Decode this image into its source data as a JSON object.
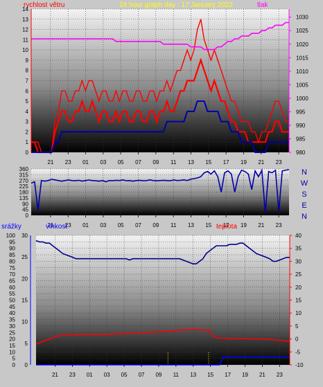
{
  "colors": {
    "page_bg": "#c8c8c8",
    "wind": "#ff0000",
    "gust_band": "#ff0000",
    "wind_dir": "#0000aa",
    "pressure": "#ff00ff",
    "humidity": "#00008b",
    "temperature": "#ff0000",
    "rain": "#0000ff",
    "title_yellow": "#ffff00"
  },
  "chart_data": [
    {
      "id": "wind_pressure",
      "type": "line",
      "title": "24 hour graph day : 17 January 2022",
      "left_label": "rychlost větru",
      "right_label": "tlak",
      "x_ticks": [
        "21",
        "23",
        "01",
        "03",
        "05",
        "07",
        "09",
        "11",
        "13",
        "15",
        "17",
        "19",
        "21",
        "23"
      ],
      "ylim_left": [
        0,
        14
      ],
      "y_ticks_left": [
        0,
        1,
        2,
        3,
        4,
        5,
        6,
        7,
        8,
        9,
        10,
        11,
        12,
        13,
        14
      ],
      "ylim_right": [
        980,
        1033
      ],
      "y_ticks_right": [
        980,
        985,
        990,
        995,
        1000,
        1005,
        1010,
        1015,
        1020,
        1025,
        1030
      ],
      "series": [
        {
          "key": "gust",
          "values": [
            1,
            1,
            1,
            0,
            0,
            0,
            0,
            3,
            4,
            6,
            6,
            5,
            5,
            6,
            6,
            7,
            6,
            7,
            7,
            6,
            5,
            6,
            6,
            5,
            5,
            6,
            5,
            6,
            6,
            5,
            5,
            6,
            6,
            5,
            5,
            6,
            6,
            5,
            6,
            6,
            7,
            6,
            7,
            8,
            8,
            9,
            10,
            9,
            10,
            12,
            13,
            11,
            10,
            9,
            10,
            9,
            8,
            7,
            6,
            5,
            5,
            4,
            3,
            3,
            3,
            2,
            2,
            1,
            2,
            2,
            3,
            4,
            5,
            5,
            4,
            3,
            3
          ]
        },
        {
          "key": "wind",
          "values": [
            1,
            1,
            0,
            0,
            0,
            0,
            0,
            2,
            3,
            4,
            4,
            3,
            3,
            4,
            4,
            5,
            4,
            4,
            5,
            4,
            3,
            4,
            4,
            3,
            3,
            4,
            3,
            4,
            4,
            3,
            3,
            4,
            4,
            3,
            3,
            4,
            4,
            3,
            4,
            4,
            5,
            4,
            4,
            5,
            6,
            6,
            7,
            7,
            7,
            8,
            9,
            8,
            7,
            6,
            7,
            6,
            5,
            5,
            4,
            3,
            3,
            2,
            2,
            2,
            1,
            1,
            1,
            1,
            1,
            1,
            2,
            2,
            3,
            3,
            2,
            2,
            2
          ]
        },
        {
          "key": "average",
          "values": [
            0,
            0,
            0,
            0,
            0,
            0,
            0,
            1,
            1,
            2,
            2,
            2,
            2,
            2,
            2,
            2,
            2,
            2,
            2,
            2,
            2,
            2,
            2,
            2,
            2,
            2,
            2,
            2,
            2,
            2,
            2,
            2,
            2,
            2,
            2,
            2,
            2,
            2,
            2,
            2,
            3,
            3,
            3,
            3,
            3,
            3,
            4,
            4,
            4,
            5,
            5,
            5,
            4,
            4,
            4,
            4,
            3,
            3,
            3,
            2,
            2,
            2,
            1,
            1,
            1,
            1,
            0,
            0,
            0,
            0,
            1,
            1,
            1,
            1,
            1,
            1,
            1
          ]
        },
        {
          "key": "pressure",
          "values": [
            1022,
            1022,
            1022,
            1022,
            1022,
            1022,
            1022,
            1022,
            1022,
            1022,
            1022,
            1022,
            1022,
            1022,
            1022,
            1022,
            1022,
            1022,
            1022,
            1022,
            1022,
            1022,
            1022,
            1022,
            1022,
            1021,
            1021,
            1021,
            1021,
            1021,
            1021,
            1021,
            1021,
            1021,
            1021,
            1021,
            1021,
            1021,
            1021,
            1020,
            1020,
            1020,
            1020,
            1020,
            1020,
            1020,
            1020,
            1019,
            1019,
            1019,
            1019,
            1018,
            1018,
            1018,
            1018,
            1019,
            1019,
            1020,
            1021,
            1021,
            1022,
            1022,
            1023,
            1023,
            1023,
            1024,
            1024,
            1024,
            1025,
            1025,
            1026,
            1026,
            1027,
            1027,
            1027,
            1028,
            1028
          ]
        }
      ]
    },
    {
      "id": "wind_direction",
      "type": "line",
      "ylim": [
        0,
        360
      ],
      "y_ticks": [
        0,
        45,
        90,
        135,
        180,
        225,
        270,
        315,
        360
      ],
      "right_labels": [
        "N",
        "W",
        "S",
        "E",
        "N"
      ],
      "x_ticks": [
        "21",
        "23",
        "01",
        "03",
        "05",
        "07",
        "09",
        "11",
        "13",
        "15",
        "17",
        "19",
        "21",
        "23"
      ],
      "series": [
        {
          "key": "direction",
          "values": [
            250,
            260,
            40,
            270,
            265,
            270,
            280,
            275,
            270,
            265,
            270,
            275,
            270,
            268,
            272,
            266,
            270,
            274,
            270,
            268,
            265,
            270,
            260,
            270,
            268,
            272,
            270,
            275,
            268,
            270,
            265,
            270,
            272,
            268,
            270,
            275,
            270,
            268,
            270,
            272,
            270,
            268,
            275,
            270,
            272,
            275,
            270,
            280,
            285,
            290,
            300,
            330,
            340,
            320,
            345,
            300,
            180,
            330,
            345,
            320,
            180,
            300,
            350,
            340,
            320,
            200,
            345,
            300,
            350,
            20,
            340,
            330,
            350,
            30,
            345,
            350,
            355
          ]
        }
      ]
    },
    {
      "id": "humidity_temperature_rain",
      "type": "line",
      "rain_label": "srážky",
      "humidity_label": "vlhkost",
      "temperature_label": "teplota",
      "x_ticks": [
        "21",
        "23",
        "01",
        "03",
        "05",
        "07",
        "09",
        "11",
        "13",
        "15",
        "17",
        "19",
        "21",
        "23"
      ],
      "ylim_rain": [
        0,
        100
      ],
      "y_ticks_rain": [
        0,
        5,
        10,
        15,
        20,
        25,
        30,
        35,
        40,
        45,
        50,
        55,
        60,
        65,
        70,
        75,
        80,
        85,
        90,
        95,
        100
      ],
      "ylim_humidity": [
        0,
        30
      ],
      "y_ticks_humidity": [
        0,
        5,
        10,
        15,
        20,
        25,
        30
      ],
      "ylim_temperature": [
        -10,
        40
      ],
      "y_ticks_temperature": [
        -10,
        -5,
        0,
        5,
        10,
        15,
        20,
        25,
        30,
        35,
        40
      ],
      "series": [
        {
          "key": "humidity",
          "values": [
            96,
            95,
            95,
            94,
            94,
            92,
            90,
            88,
            86,
            85,
            84,
            83,
            82,
            82,
            82,
            82,
            82,
            82,
            82,
            82,
            82,
            82,
            82,
            82,
            82,
            82,
            82,
            82,
            81,
            82,
            82,
            82,
            82,
            82,
            82,
            82,
            82,
            82,
            82,
            82,
            82,
            82,
            82,
            82,
            81,
            80,
            79,
            78,
            78,
            80,
            82,
            86,
            88,
            90,
            92,
            92,
            92,
            92,
            93,
            93,
            93,
            94,
            94,
            92,
            90,
            88,
            86,
            85,
            84,
            83,
            82,
            80,
            80,
            81,
            82,
            83,
            83
          ]
        },
        {
          "key": "temperature",
          "values": [
            -2,
            -1.5,
            -1,
            -0.5,
            0,
            0.5,
            1,
            1.2,
            1.4,
            1.5,
            1.6,
            1.6,
            1.7,
            1.7,
            1.7,
            1.7,
            1.7,
            1.7,
            1.7,
            1.7,
            1.7,
            1.8,
            1.8,
            1.9,
            1.9,
            2,
            2,
            2.1,
            2.2,
            2.3,
            2.3,
            2.4,
            2.4,
            2.5,
            2.5,
            2.6,
            2.7,
            2.8,
            2.8,
            2.9,
            3,
            3,
            3.2,
            3.4,
            3.5,
            3.6,
            3.6,
            3.6,
            3.6,
            3.6,
            3.5,
            3.4,
            3.3,
            1,
            0.5,
            0.3,
            0.3,
            0.3,
            0.2,
            0.2,
            0.2,
            0.2,
            0.1,
            0.1,
            0.1,
            0,
            0,
            0,
            -0.1,
            -0.1,
            -0.2,
            -0.3,
            -0.5,
            -0.5,
            -0.7,
            -0.8,
            -0.9
          ]
        },
        {
          "key": "rain",
          "values": [
            0,
            0,
            0,
            0,
            0,
            0,
            0,
            0,
            0,
            0,
            0,
            0,
            0,
            0,
            0,
            0,
            0,
            0,
            0,
            0,
            0,
            0,
            0,
            0,
            0,
            0,
            0,
            0,
            0,
            0,
            0,
            0,
            0,
            0,
            0,
            0,
            0,
            0,
            0,
            0,
            0,
            0,
            0,
            0,
            0,
            0,
            0,
            0,
            0,
            0,
            0,
            0,
            0,
            0,
            0,
            0,
            6,
            6,
            6,
            6,
            6,
            6,
            6,
            6,
            6,
            6,
            6,
            6,
            6,
            6,
            6,
            6,
            6,
            6,
            6,
            6,
            6
          ]
        }
      ]
    }
  ]
}
